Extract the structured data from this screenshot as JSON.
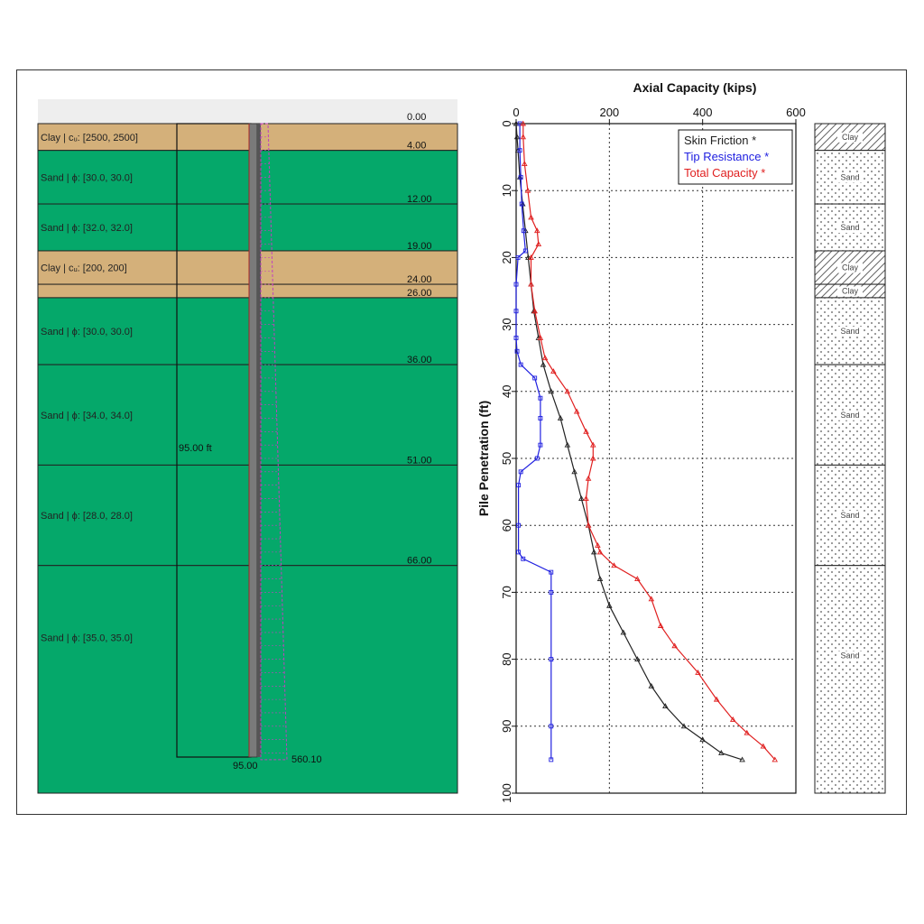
{
  "colors": {
    "clay": "#d4b07a",
    "sand": "#05a86a",
    "skin": "#222222",
    "tip": "#2020e0",
    "total": "#e02020",
    "pile": "#7a7a7a"
  },
  "profile": {
    "surface_label": "0.00",
    "pile_length_label": "95.00 ft",
    "pile_tip_label": "95.00",
    "tip_value_label": "560.10",
    "layers": [
      {
        "top": 0,
        "bottom": 4,
        "kind": "clay",
        "label": "Clay | cᵤ: [2500, 2500]",
        "depth_label": "4.00"
      },
      {
        "top": 4,
        "bottom": 12,
        "kind": "sand",
        "label": "Sand | ϕ: [30.0, 30.0]",
        "depth_label": "12.00"
      },
      {
        "top": 12,
        "bottom": 19,
        "kind": "sand",
        "label": "Sand | ϕ: [32.0, 32.0]",
        "depth_label": "19.00"
      },
      {
        "top": 19,
        "bottom": 24,
        "kind": "clay",
        "label": "Clay | cᵤ: [200, 200]",
        "depth_label": "24.00"
      },
      {
        "top": 24,
        "bottom": 26,
        "kind": "clay",
        "label": "",
        "depth_label": "26.00"
      },
      {
        "top": 26,
        "bottom": 36,
        "kind": "sand",
        "label": "Sand | ϕ: [30.0, 30.0]",
        "depth_label": "36.00"
      },
      {
        "top": 36,
        "bottom": 51,
        "kind": "sand",
        "label": "Sand | ϕ: [34.0, 34.0]",
        "depth_label": "51.00"
      },
      {
        "top": 51,
        "bottom": 66,
        "kind": "sand",
        "label": "Sand | ϕ: [28.0, 28.0]",
        "depth_label": "66.00"
      },
      {
        "top": 66,
        "bottom": 100,
        "kind": "sand",
        "label": "Sand | ϕ: [35.0, 35.0]",
        "depth_label": ""
      }
    ]
  },
  "strip": {
    "layers": [
      {
        "top": 0,
        "bottom": 4,
        "kind": "clay",
        "label": "Clay"
      },
      {
        "top": 4,
        "bottom": 12,
        "kind": "sand",
        "label": "Sand"
      },
      {
        "top": 12,
        "bottom": 19,
        "kind": "sand",
        "label": "Sand"
      },
      {
        "top": 19,
        "bottom": 24,
        "kind": "clay",
        "label": "Clay"
      },
      {
        "top": 24,
        "bottom": 26,
        "kind": "clay",
        "label": "Clay"
      },
      {
        "top": 26,
        "bottom": 36,
        "kind": "sand",
        "label": "Sand"
      },
      {
        "top": 36,
        "bottom": 51,
        "kind": "sand",
        "label": "Sand"
      },
      {
        "top": 51,
        "bottom": 66,
        "kind": "sand",
        "label": "Sand"
      },
      {
        "top": 66,
        "bottom": 100,
        "kind": "sand",
        "label": "Sand"
      }
    ]
  },
  "chart_data": {
    "type": "line",
    "title": "Axial Capacity (kips)",
    "xlabel": "Axial Capacity (kips)",
    "ylabel": "Pile Penetration (ft)",
    "xlim": [
      0,
      600
    ],
    "ylim": [
      0,
      100
    ],
    "y_inverted": true,
    "x_ticks": [
      0,
      200,
      400,
      600
    ],
    "y_ticks": [
      0,
      10,
      20,
      30,
      40,
      50,
      60,
      70,
      80,
      90,
      100
    ],
    "grid": true,
    "legend_position": "top-right",
    "series": [
      {
        "name": "Skin Friction *",
        "color": "#222222",
        "points": [
          [
            0,
            0
          ],
          [
            2,
            2
          ],
          [
            4,
            4
          ],
          [
            8,
            8
          ],
          [
            14,
            12
          ],
          [
            20,
            16
          ],
          [
            26,
            20
          ],
          [
            32,
            24
          ],
          [
            38,
            28
          ],
          [
            48,
            32
          ],
          [
            58,
            36
          ],
          [
            75,
            40
          ],
          [
            95,
            44
          ],
          [
            110,
            48
          ],
          [
            125,
            52
          ],
          [
            140,
            56
          ],
          [
            155,
            60
          ],
          [
            167,
            64
          ],
          [
            180,
            68
          ],
          [
            200,
            72
          ],
          [
            230,
            76
          ],
          [
            260,
            80
          ],
          [
            290,
            84
          ],
          [
            320,
            87
          ],
          [
            360,
            90
          ],
          [
            400,
            92
          ],
          [
            440,
            94
          ],
          [
            485,
            95
          ]
        ]
      },
      {
        "name": "Tip Resistance *",
        "color": "#2020e0",
        "points": [
          [
            8,
            0
          ],
          [
            8,
            4
          ],
          [
            10,
            8
          ],
          [
            12,
            12
          ],
          [
            16,
            16
          ],
          [
            20,
            19
          ],
          [
            4,
            20
          ],
          [
            0,
            24
          ],
          [
            0,
            28
          ],
          [
            0,
            32
          ],
          [
            2,
            34
          ],
          [
            10,
            36
          ],
          [
            40,
            38
          ],
          [
            52,
            41
          ],
          [
            52,
            44
          ],
          [
            52,
            48
          ],
          [
            45,
            50
          ],
          [
            10,
            52
          ],
          [
            5,
            54
          ],
          [
            5,
            60
          ],
          [
            5,
            64
          ],
          [
            15,
            65
          ],
          [
            75,
            67
          ],
          [
            75,
            70
          ],
          [
            75,
            80
          ],
          [
            75,
            90
          ],
          [
            75,
            95
          ]
        ]
      },
      {
        "name": "Total Capacity *",
        "color": "#e02020",
        "points": [
          [
            15,
            0
          ],
          [
            15,
            2
          ],
          [
            18,
            6
          ],
          [
            25,
            10
          ],
          [
            32,
            14
          ],
          [
            45,
            16
          ],
          [
            48,
            18
          ],
          [
            32,
            20
          ],
          [
            32,
            24
          ],
          [
            40,
            28
          ],
          [
            52,
            32
          ],
          [
            62,
            35
          ],
          [
            80,
            37
          ],
          [
            110,
            40
          ],
          [
            130,
            43
          ],
          [
            150,
            46
          ],
          [
            165,
            48
          ],
          [
            165,
            50
          ],
          [
            155,
            53
          ],
          [
            150,
            56
          ],
          [
            155,
            60
          ],
          [
            175,
            63
          ],
          [
            180,
            64
          ],
          [
            210,
            66
          ],
          [
            260,
            68
          ],
          [
            290,
            71
          ],
          [
            310,
            75
          ],
          [
            340,
            78
          ],
          [
            390,
            82
          ],
          [
            430,
            86
          ],
          [
            465,
            89
          ],
          [
            495,
            91
          ],
          [
            530,
            93
          ],
          [
            555,
            95
          ]
        ]
      }
    ]
  }
}
